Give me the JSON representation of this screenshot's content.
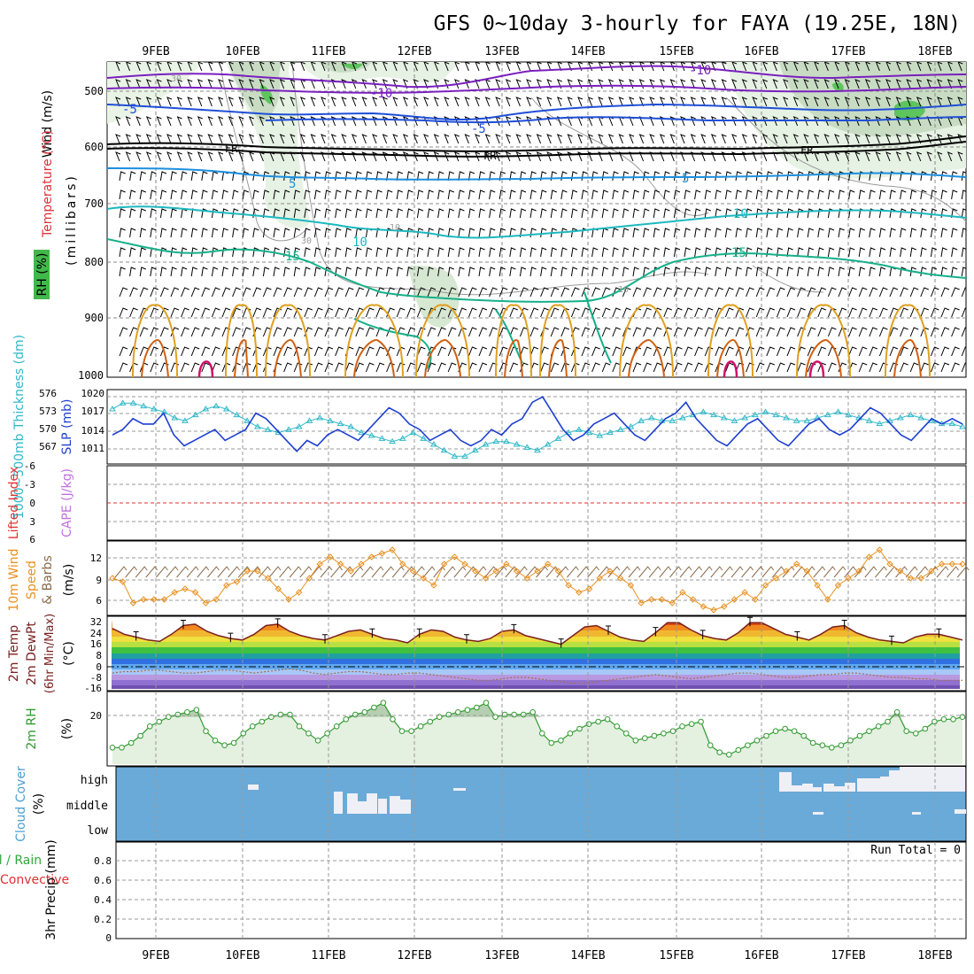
{
  "title": "GFS 0~10day 3-hourly for FAYA (19.25E, 18N)",
  "date_labels": [
    "9FEB",
    "10FEB",
    "11FEB",
    "12FEB",
    "13FEB",
    "14FEB",
    "15FEB",
    "16FEB",
    "17FEB",
    "18FEB"
  ],
  "colors": {
    "temp_cold": "#7a1fbf",
    "temp_blue": "#1f4fd8",
    "temp_mid": "#1b8fe0",
    "temp_teal": "#1cb8c0",
    "temp_green": "#16b08a",
    "freezing": "#000000",
    "theta_orange": "#e0a020",
    "theta_dark": "#d06010",
    "theta_pink": "#d0106a",
    "slp": "#1d3fd0",
    "thickness": "#30b8c8",
    "wind10": "#e89020",
    "rh2m": "#2f9a2f",
    "cloud": "#6aaad8",
    "precip_axis": "#000000"
  },
  "panels": {
    "upper": {
      "ylabel_wind": "Wind (m/s)",
      "ylabel_temp": "Temperature (°C)",
      "ylabel_rh": "RH (%)",
      "ylabel_press": "(millibars)",
      "pressure_ticks": [
        "500",
        "600",
        "700",
        "800",
        "900",
        "1000"
      ],
      "contour_labels": [
        "-10",
        "-10",
        "-5",
        "-5",
        "FR",
        "FR",
        "FR",
        "5",
        "5",
        "10",
        "10",
        "15",
        "15",
        "30",
        "30",
        "10",
        "10"
      ]
    },
    "slp": {
      "ylabel_left": "1000~500mb Thickness (dm)",
      "ylabel_right": "SLP (mb)",
      "ticks_left": [
        "576",
        "573",
        "570",
        "567"
      ],
      "ticks_right": [
        "1020",
        "1017",
        "1014",
        "1011"
      ]
    },
    "li": {
      "ylabel_left": "Lifted Index",
      "ylabel_right": "CAPE (J/kg)",
      "ticks": [
        "-6",
        "-3",
        "0",
        "3",
        "6"
      ]
    },
    "wind10": {
      "ylabel_a": "10m Wind",
      "ylabel_b": "Speed",
      "ylabel_c": "& Barbs",
      "unit": "(m/s)",
      "ticks": [
        "12",
        "9",
        "6"
      ]
    },
    "temp2m": {
      "ylabel_a": "2m Temp",
      "ylabel_b": "2m DewPt",
      "ylabel_c": "(6hr Min/Max)",
      "unit": "(°C)",
      "ticks": [
        "32",
        "24",
        "16",
        "8",
        "0",
        "-8",
        "-16"
      ]
    },
    "rh2m": {
      "ylabel": "2m RH",
      "unit": "(%)",
      "ticks": [
        "20"
      ]
    },
    "cloud": {
      "ylabel": "Cloud Cover",
      "unit": "(%)",
      "levels": [
        "high",
        "middle",
        "low"
      ]
    },
    "precip": {
      "ylabel_a": "Total / Rain",
      "ylabel_b": "Convective",
      "ylabel_c": "3hr Precip (mm)",
      "ticks": [
        "0.8",
        "0.6",
        "0.4",
        "0.2",
        "0"
      ],
      "run_total": "Run Total = 0"
    }
  },
  "chart_data": [
    {
      "type": "line",
      "title": "1000~500mb Thickness (dm) / SLP (mb)",
      "x_unit": "3-hourly steps from 8 Feb 12Z",
      "series": [
        {
          "name": "SLP (mb)",
          "axis": "right",
          "ylim": [
            1008,
            1021
          ],
          "values": [
            1013,
            1014,
            1016,
            1015,
            1015,
            1017,
            1013,
            1011,
            1012,
            1013,
            1014,
            1012,
            1013,
            1014,
            1017,
            1016,
            1014,
            1012,
            1010,
            1012,
            1011,
            1013,
            1014,
            1013,
            1012,
            1014,
            1016,
            1018,
            1017,
            1015,
            1014,
            1012,
            1013,
            1014,
            1012,
            1011,
            1012,
            1014,
            1013,
            1015,
            1016,
            1019,
            1020,
            1017,
            1014,
            1012,
            1013,
            1015,
            1016,
            1017,
            1015,
            1013,
            1012,
            1014,
            1016,
            1017,
            1019,
            1016,
            1014,
            1012,
            1011,
            1013,
            1015,
            1016,
            1014,
            1012,
            1011,
            1013,
            1015,
            1016,
            1014,
            1013,
            1014,
            1016,
            1018,
            1017,
            1015,
            1013,
            1012,
            1014,
            1016,
            1015,
            1016,
            1015
          ]
        },
        {
          "name": "1000~500mb Thickness (dm)",
          "axis": "left",
          "ylim": [
            565,
            577
          ],
          "values": [
            574,
            575,
            575,
            574.5,
            574,
            573.5,
            572.5,
            572,
            573,
            574,
            574.5,
            574,
            573,
            572,
            571,
            570.5,
            570,
            570.5,
            571,
            572,
            572.5,
            572,
            571.5,
            571,
            570,
            569.5,
            569,
            568.5,
            569,
            570,
            569,
            568,
            567,
            566,
            566,
            567,
            568,
            568.5,
            568.5,
            568,
            567.5,
            567,
            568,
            569,
            570,
            570.5,
            570,
            569.5,
            570,
            570.5,
            571,
            572,
            572.5,
            572,
            572,
            572.5,
            573,
            573.5,
            573,
            572.5,
            572,
            572.5,
            573,
            573.5,
            573,
            572.5,
            572,
            572,
            572.5,
            573,
            573.5,
            573,
            572.5,
            572,
            571.5,
            572,
            572.5,
            573,
            572.5,
            572,
            571.5,
            571.5,
            571
          ]
        }
      ],
      "xlim": [
        0,
        84
      ]
    },
    {
      "type": "line",
      "title": "10m Wind Speed (m/s)",
      "ylim": [
        4,
        14
      ],
      "series": [
        {
          "name": "10m Wind Speed",
          "values": [
            9,
            8.5,
            5.5,
            6,
            6,
            6,
            7,
            7.5,
            7,
            5.5,
            6,
            8,
            8.5,
            10,
            10,
            9,
            7.5,
            6,
            7,
            9,
            11,
            12,
            11,
            10,
            11,
            12,
            12.5,
            13,
            11,
            10,
            9,
            8,
            11,
            12,
            11,
            10,
            9,
            10,
            11,
            10,
            9,
            10,
            11,
            10,
            8,
            7,
            7.5,
            9,
            10,
            9,
            8,
            5.5,
            6,
            6,
            5.5,
            7,
            6,
            5,
            4.5,
            5,
            6,
            7,
            6,
            8,
            9,
            10,
            11,
            10,
            8,
            6,
            8,
            9,
            10,
            12,
            13,
            11,
            10,
            9,
            9,
            10,
            11,
            11,
            11
          ]
        }
      ],
      "xlim": [
        0,
        84
      ]
    },
    {
      "type": "area",
      "title": "2m Temp (°C)",
      "ylim": [
        -16,
        32
      ],
      "series": [
        {
          "name": "2m Temp",
          "values": [
            26,
            22,
            20,
            18,
            17,
            22,
            28,
            29,
            24,
            21,
            19,
            18,
            22,
            28,
            29,
            24,
            21,
            19,
            18,
            21,
            24,
            25,
            22,
            19,
            18,
            16,
            22,
            25,
            24,
            20,
            18,
            17,
            19,
            24,
            25,
            21,
            19,
            17,
            15,
            21,
            27,
            28,
            24,
            20,
            18,
            17,
            23,
            30,
            30,
            25,
            21,
            19,
            18,
            23,
            30,
            30,
            26,
            22,
            20,
            18,
            22,
            27,
            28,
            23,
            20,
            18,
            17,
            16,
            20,
            22,
            22,
            20,
            18
          ]
        },
        {
          "name": "2m DewPt",
          "values": [
            -5,
            -4,
            -4,
            -3,
            -3,
            -4,
            -5,
            -5,
            -4,
            -3,
            -3,
            -4,
            -5,
            -4,
            -3,
            -2,
            -3,
            -5,
            -6,
            -5,
            -4,
            -4,
            -5,
            -6,
            -6,
            -5,
            -5,
            -6,
            -7,
            -8,
            -9,
            -10,
            -10,
            -9,
            -8,
            -8,
            -9,
            -10,
            -11,
            -12,
            -12,
            -11,
            -10,
            -9,
            -8,
            -7,
            -6,
            -7,
            -8,
            -9,
            -8,
            -7,
            -6,
            -5,
            -5,
            -6,
            -7,
            -8,
            -8,
            -7,
            -6,
            -6,
            -5,
            -5,
            -6,
            -7,
            -8,
            -8,
            -9,
            -9,
            -10,
            -10,
            -10
          ]
        }
      ],
      "xlim": [
        0,
        84
      ]
    },
    {
      "type": "area",
      "title": "2m RH (%)",
      "ylim": [
        0,
        30
      ],
      "series": [
        {
          "name": "2m RH",
          "values": [
            7,
            7,
            9,
            12,
            16,
            18,
            20,
            21,
            22,
            23,
            14,
            10,
            8,
            9,
            13,
            16,
            18,
            20,
            21,
            21,
            16,
            13,
            10,
            13,
            16,
            19,
            21,
            22,
            24,
            26,
            19,
            14,
            14,
            16,
            18,
            20,
            21,
            22,
            23,
            24,
            26,
            20,
            21,
            21,
            21,
            22,
            13,
            9,
            10,
            13,
            15,
            17,
            18,
            19,
            16,
            13,
            10,
            11,
            12,
            13,
            14,
            16,
            17,
            18,
            8,
            5,
            4,
            6,
            8,
            10,
            12,
            14,
            15,
            14,
            12,
            9,
            8,
            7,
            8,
            10,
            12,
            14,
            16,
            18,
            22,
            14,
            13,
            15,
            18,
            19,
            19,
            20
          ]
        }
      ],
      "xlim": [
        0,
        91
      ]
    },
    {
      "type": "bar",
      "title": "3hr Precip (mm)",
      "ylim": [
        0,
        0.9
      ],
      "series": [
        {
          "name": "Total / Rain",
          "values": []
        },
        {
          "name": "Convective",
          "values": []
        }
      ]
    }
  ]
}
